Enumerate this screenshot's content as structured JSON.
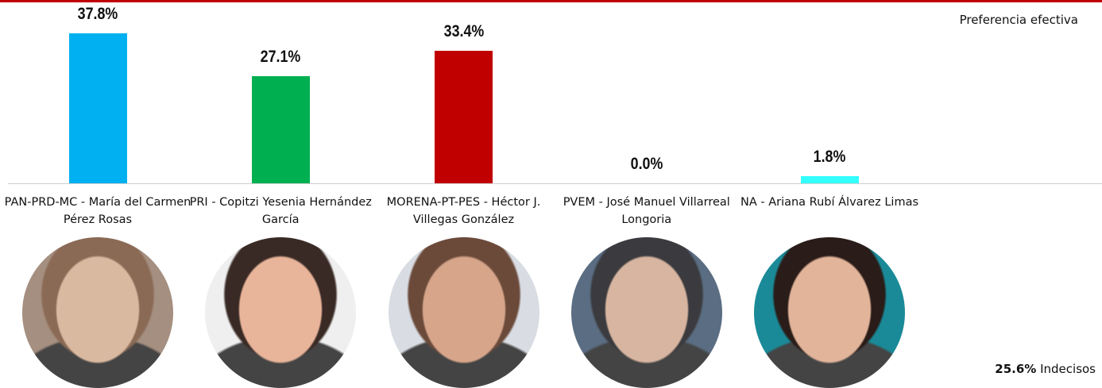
{
  "chart_data": {
    "type": "bar",
    "subtitle": "Preferencia efectiva",
    "categories": [
      "PAN-PRD-MC - María del Carmen Pérez Rosas",
      "PRI - Copitzi Yesenia Hernández García",
      "MORENA-PT-PES - Héctor J. Villegas González",
      "PVEM - José Manuel Villarreal Longoria",
      "NA - Ariana Rubí Álvarez Limas"
    ],
    "values": [
      37.8,
      27.1,
      33.4,
      0.0,
      1.8
    ],
    "value_labels": [
      "37.8%",
      "27.1%",
      "33.4%",
      "0.0%",
      "1.8%"
    ],
    "colors": [
      "#00b0f0",
      "#00b050",
      "#c00000",
      "#7f7f7f",
      "#33ffff"
    ],
    "ylim": [
      0,
      40
    ],
    "undecided": {
      "label": "25.6%",
      "text": "Indecisos"
    }
  }
}
